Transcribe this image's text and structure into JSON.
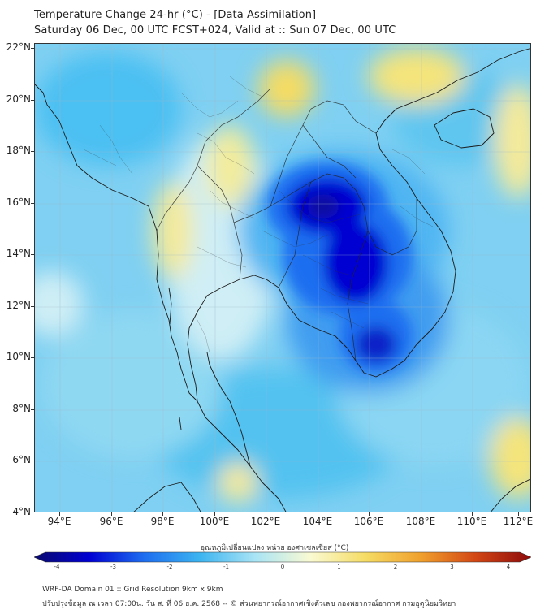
{
  "header": {
    "title": "Temperature Change 24-hr (°C) - [Data Assimilation]",
    "subtitle": "Saturday 06 Dec, 00 UTC FCST+024, Valid at :: Sun 07 Dec, 00 UTC"
  },
  "map": {
    "lat_labels": [
      "22°N",
      "20°N",
      "18°N",
      "16°N",
      "14°N",
      "12°N",
      "10°N",
      "8°N",
      "6°N",
      "4°N"
    ],
    "lon_labels": [
      "94°E",
      "96°E",
      "98°E",
      "100°E",
      "102°E",
      "104°E",
      "106°E",
      "108°E",
      "110°E",
      "112°E"
    ],
    "lat_range": [
      4,
      22.2
    ],
    "lon_range": [
      93,
      112.3
    ]
  },
  "colorbar": {
    "title": "อุณหภูมิเปลี่ยนแปลง หน่วย องศาเซลเซียส (°C)",
    "ticks": [
      "-4",
      "-3",
      "-2",
      "-1",
      "0",
      "1",
      "2",
      "3",
      "4"
    ],
    "min": -4,
    "max": 4,
    "colors": [
      "#0a0a6e",
      "#0000d2",
      "#1e6ef0",
      "#3cb4f0",
      "#a8e4f5",
      "#fafad2",
      "#f5dc64",
      "#f0a02d",
      "#d24614",
      "#8c0a0a"
    ]
  },
  "footer": {
    "line1": "WRF-DA Domain 01 :: Grid Resolution 9km x 9km",
    "line2": "ปรับปรุงข้อมูล ณ เวลา 07:00น. วัน ส. ที่ 06 ธ.ค. 2568 -- © ส่วนพยากรณ์อากาศเชิงตัวเลข กองพยากรณ์อากาศ กรมอุตุนิยมวิทยา"
  }
}
